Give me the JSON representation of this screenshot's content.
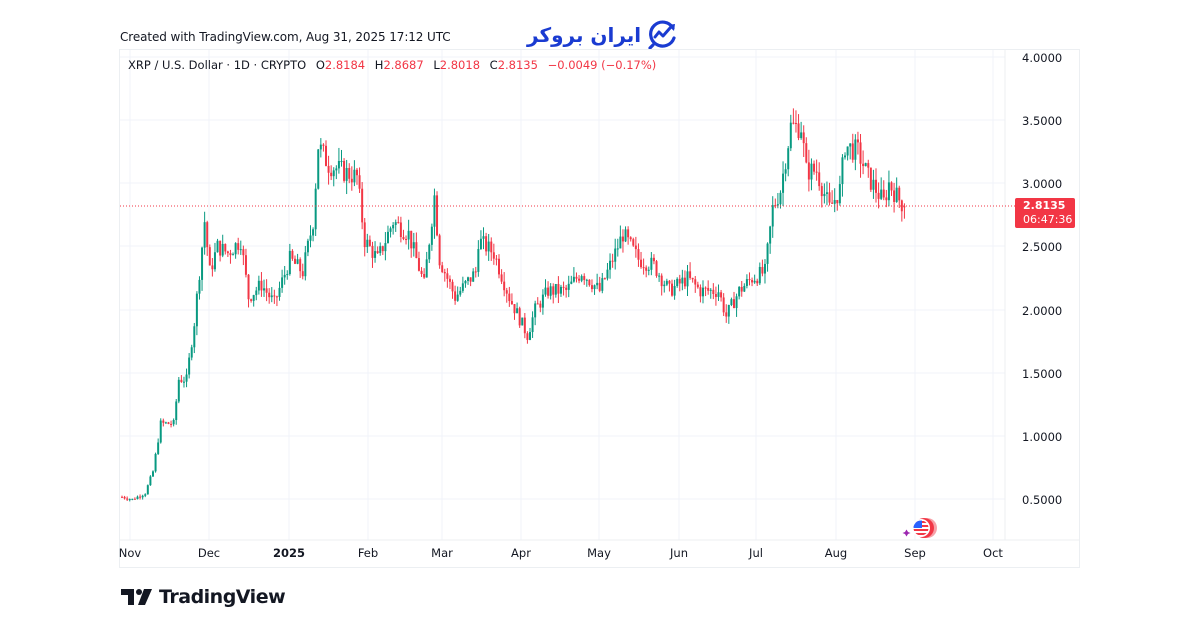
{
  "header": {
    "created_text": "Created with TradingView.com, Aug 31, 2025 17:12 UTC",
    "brand_text": "ایران بروکر",
    "brand_icon": "chart-growth-logo-icon",
    "brand_color": "#1a3bd1"
  },
  "legend": {
    "symbol": "XRP / U.S. Dollar · 1D · CRYPTO",
    "open_label": "O",
    "open": "2.8184",
    "high_label": "H",
    "high": "2.8687",
    "low_label": "L",
    "low": "2.8018",
    "close_label": "C",
    "close": "2.8135",
    "change": "−0.0049 (−0.17%)"
  },
  "price_tag": {
    "price": "2.8135",
    "countdown": "06:47:36",
    "color": "#f23645"
  },
  "footer": {
    "logo_text": "TradingView",
    "logo_icon": "tradingview-logo-icon"
  },
  "event_marker": {
    "icon": "us-flag-economic-event-icon"
  },
  "colors": {
    "up": "#089981",
    "down": "#f23645",
    "grid": "#f0f3fa",
    "text": "#131722"
  },
  "chart_data": {
    "type": "candlestick",
    "title": "XRP / U.S. Dollar · 1D · CRYPTO",
    "xlabel": "",
    "ylabel": "",
    "ylim": [
      0.0,
      4.0
    ],
    "grid": true,
    "y_ticks": [
      "4.0000",
      "3.5000",
      "3.0000",
      "2.5000",
      "2.0000",
      "1.5000",
      "1.0000",
      "0.5000"
    ],
    "x_ticks": [
      "Nov",
      "Dec",
      "2025",
      "Feb",
      "Mar",
      "Apr",
      "May",
      "Jun",
      "Jul",
      "Aug",
      "Sep",
      "Oct"
    ],
    "last_price": 2.8135,
    "approx_close_path": [
      {
        "date": "2024-11-01",
        "close": 0.52
      },
      {
        "date": "2024-11-05",
        "close": 0.5
      },
      {
        "date": "2024-11-10",
        "close": 0.55
      },
      {
        "date": "2024-11-13",
        "close": 0.72
      },
      {
        "date": "2024-11-16",
        "close": 1.1
      },
      {
        "date": "2024-11-21",
        "close": 1.1
      },
      {
        "date": "2024-11-23",
        "close": 1.45
      },
      {
        "date": "2024-11-26",
        "close": 1.45
      },
      {
        "date": "2024-11-29",
        "close": 1.9
      },
      {
        "date": "2024-12-02",
        "close": 2.5
      },
      {
        "date": "2024-12-03",
        "close": 2.7
      },
      {
        "date": "2024-12-05",
        "close": 2.3
      },
      {
        "date": "2024-12-08",
        "close": 2.5
      },
      {
        "date": "2024-12-12",
        "close": 2.45
      },
      {
        "date": "2024-12-17",
        "close": 2.55
      },
      {
        "date": "2024-12-20",
        "close": 2.1
      },
      {
        "date": "2024-12-25",
        "close": 2.2
      },
      {
        "date": "2024-12-30",
        "close": 2.05
      },
      {
        "date": "2025-01-05",
        "close": 2.4
      },
      {
        "date": "2025-01-10",
        "close": 2.3
      },
      {
        "date": "2025-01-14",
        "close": 2.7
      },
      {
        "date": "2025-01-16",
        "close": 3.3
      },
      {
        "date": "2025-01-20",
        "close": 3.15
      },
      {
        "date": "2025-01-25",
        "close": 3.1
      },
      {
        "date": "2025-01-31",
        "close": 3.05
      },
      {
        "date": "2025-02-03",
        "close": 2.55
      },
      {
        "date": "2025-02-08",
        "close": 2.4
      },
      {
        "date": "2025-02-14",
        "close": 2.7
      },
      {
        "date": "2025-02-20",
        "close": 2.6
      },
      {
        "date": "2025-02-26",
        "close": 2.2
      },
      {
        "date": "2025-03-02",
        "close": 2.9
      },
      {
        "date": "2025-03-04",
        "close": 2.4
      },
      {
        "date": "2025-03-10",
        "close": 2.1
      },
      {
        "date": "2025-03-18",
        "close": 2.3
      },
      {
        "date": "2025-03-19",
        "close": 2.55
      },
      {
        "date": "2025-03-25",
        "close": 2.45
      },
      {
        "date": "2025-03-31",
        "close": 2.1
      },
      {
        "date": "2025-04-07",
        "close": 1.8
      },
      {
        "date": "2025-04-10",
        "close": 2.0
      },
      {
        "date": "2025-04-15",
        "close": 2.15
      },
      {
        "date": "2025-04-22",
        "close": 2.15
      },
      {
        "date": "2025-04-28",
        "close": 2.3
      },
      {
        "date": "2025-05-05",
        "close": 2.15
      },
      {
        "date": "2025-05-10",
        "close": 2.4
      },
      {
        "date": "2025-05-14",
        "close": 2.6
      },
      {
        "date": "2025-05-20",
        "close": 2.4
      },
      {
        "date": "2025-05-26",
        "close": 2.35
      },
      {
        "date": "2025-06-01",
        "close": 2.15
      },
      {
        "date": "2025-06-08",
        "close": 2.25
      },
      {
        "date": "2025-06-13",
        "close": 2.15
      },
      {
        "date": "2025-06-20",
        "close": 2.15
      },
      {
        "date": "2025-06-23",
        "close": 1.95
      },
      {
        "date": "2025-06-28",
        "close": 2.15
      },
      {
        "date": "2025-07-03",
        "close": 2.25
      },
      {
        "date": "2025-07-08",
        "close": 2.3
      },
      {
        "date": "2025-07-11",
        "close": 2.8
      },
      {
        "date": "2025-07-14",
        "close": 2.95
      },
      {
        "date": "2025-07-18",
        "close": 3.45
      },
      {
        "date": "2025-07-22",
        "close": 3.45
      },
      {
        "date": "2025-07-24",
        "close": 3.1
      },
      {
        "date": "2025-07-28",
        "close": 3.1
      },
      {
        "date": "2025-08-02",
        "close": 2.8
      },
      {
        "date": "2025-08-06",
        "close": 2.95
      },
      {
        "date": "2025-08-08",
        "close": 3.3
      },
      {
        "date": "2025-08-13",
        "close": 3.25
      },
      {
        "date": "2025-08-17",
        "close": 3.05
      },
      {
        "date": "2025-08-20",
        "close": 2.95
      },
      {
        "date": "2025-08-23",
        "close": 2.85
      },
      {
        "date": "2025-08-25",
        "close": 3.0
      },
      {
        "date": "2025-08-28",
        "close": 2.9
      },
      {
        "date": "2025-08-31",
        "close": 2.8135
      }
    ],
    "extremes": {
      "all_time_high_approx": 3.65,
      "high_date": "2025-07-18",
      "low_approx": 0.49,
      "low_date": "2024-11-05"
    }
  }
}
